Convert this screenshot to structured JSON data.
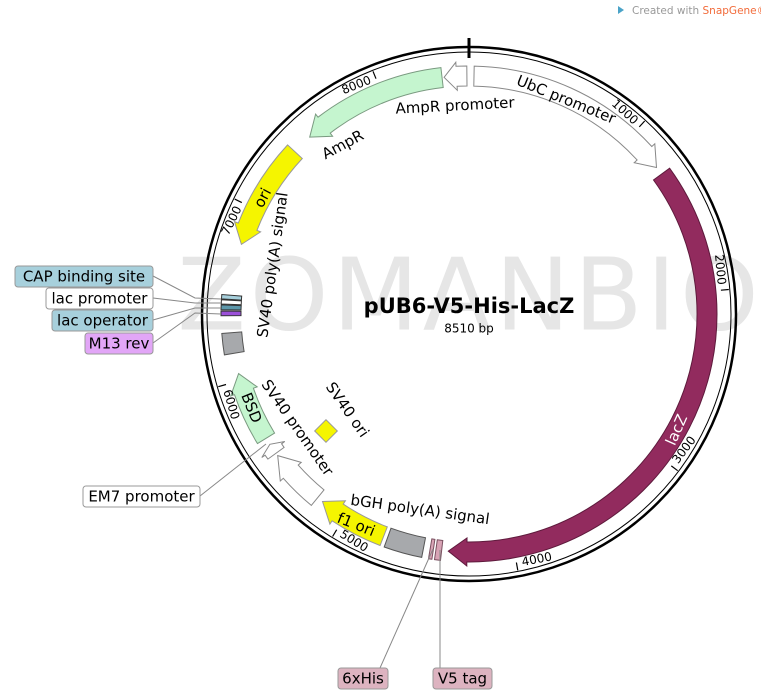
{
  "credit": {
    "prefix": "Created with",
    "brand": "SnapGene®"
  },
  "watermark": "ZOMANBIO",
  "map": {
    "name": "pUB6-V5-His-LacZ",
    "length": {
      "value": 8510,
      "label": "8510 bp"
    },
    "ticks": [
      1000,
      2000,
      3000,
      4000,
      5000,
      6000,
      7000,
      8000
    ],
    "features": [
      "UbC promoter",
      "lacZ",
      "bGH poly(A) signal",
      "f1 ori",
      "SV40 promoter",
      "SV40 ori",
      "BSD",
      "SV40 poly(A) signal",
      "ori",
      "AmpR",
      "AmpR promoter"
    ],
    "callouts": [
      "CAP binding site",
      "lac promoter",
      "lac operator",
      "M13 rev",
      "EM7 promoter",
      "6xHis",
      "V5 tag"
    ]
  }
}
